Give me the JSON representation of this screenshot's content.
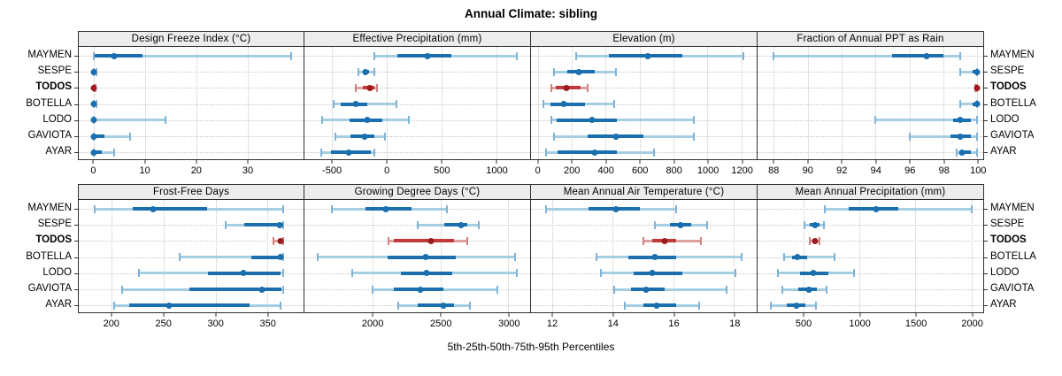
{
  "title": "Annual Climate: sibling",
  "caption": "5th-25th-50th-75th-95th Percentiles",
  "colors": {
    "blue_dot": "#1b6fae",
    "blue_bar": "#1b6fae",
    "blue_band": "#a6cee3",
    "blue_cap": "#7fb3d8",
    "red_dot": "#9c1b1e",
    "red_bar": "#c0393b",
    "red_band": "#dfa0a0",
    "red_cap": "#d08080",
    "header_bg": "#ececec",
    "grid": "#c6c6c6",
    "frame": "#2f2f2f"
  },
  "chart_data": {
    "type": "scatter",
    "subtype": "percentile-dotplot-with-error-bars",
    "grid": "dotted",
    "legend": "none",
    "percentiles": [
      "5th",
      "25th",
      "50th",
      "75th",
      "95th"
    ],
    "rows": [
      "MAYMEN",
      "SESPE",
      "TODOS",
      "BOTELLA",
      "LODO",
      "GAVIOTA",
      "AYAR"
    ],
    "highlighted_row": "TODOS",
    "panels": [
      {
        "band": 0,
        "title": "Design Freeze Index (°C)",
        "xdomain": [
          -3,
          41
        ],
        "ticks": [
          0,
          10,
          20,
          30
        ],
        "tick_labels": [
          "0",
          "10",
          "20",
          "30"
        ],
        "values": {
          "MAYMEN": [
            0,
            0.2,
            4,
            9.5,
            38.5
          ],
          "SESPE": [
            0,
            0,
            0,
            0,
            0.5
          ],
          "TODOS": [
            0,
            0,
            0,
            0,
            0.3
          ],
          "BOTELLA": [
            0,
            0,
            0,
            0,
            0.5
          ],
          "LODO": [
            0,
            0,
            0,
            0.5,
            14
          ],
          "GAVIOTA": [
            0,
            0,
            0,
            2,
            7
          ],
          "AYAR": [
            0,
            0,
            0,
            1.5,
            4
          ]
        }
      },
      {
        "band": 0,
        "title": "Effective Precipitation (mm)",
        "xdomain": [
          -750,
          1310
        ],
        "ticks": [
          -500,
          0,
          500,
          1000
        ],
        "tick_labels": [
          "-500",
          "0",
          "500",
          "1000"
        ],
        "values": {
          "MAYMEN": [
            -110,
            95,
            375,
            595,
            1185
          ],
          "SESPE": [
            -255,
            -220,
            -190,
            -160,
            -110
          ],
          "TODOS": [
            -280,
            -215,
            -150,
            -110,
            -90
          ],
          "BOTELLA": [
            -480,
            -420,
            -280,
            -180,
            90
          ],
          "LODO": [
            -590,
            -340,
            -180,
            -40,
            205
          ],
          "GAVIOTA": [
            -465,
            -330,
            -200,
            -110,
            -15
          ],
          "AYAR": [
            -600,
            -505,
            -350,
            -145,
            -115
          ]
        }
      },
      {
        "band": 0,
        "title": "Elevation (m)",
        "xdomain": [
          -40,
          1290
        ],
        "ticks": [
          0,
          200,
          400,
          600,
          800,
          1000,
          1200
        ],
        "tick_labels": [
          "0",
          "200",
          "400",
          "600",
          "800",
          "1000",
          "1200"
        ],
        "values": {
          "MAYMEN": [
            225,
            420,
            650,
            850,
            1210
          ],
          "SESPE": [
            95,
            175,
            240,
            335,
            460
          ],
          "TODOS": [
            80,
            105,
            170,
            250,
            295
          ],
          "BOTELLA": [
            35,
            75,
            155,
            280,
            450
          ],
          "LODO": [
            80,
            110,
            320,
            465,
            920
          ],
          "GAVIOTA": [
            95,
            295,
            460,
            620,
            920
          ],
          "AYAR": [
            50,
            115,
            335,
            465,
            685
          ]
        }
      },
      {
        "band": 0,
        "title": "Fraction of Annual PPT as Rain",
        "xdomain": [
          87.05,
          100.35
        ],
        "ticks": [
          88,
          90,
          92,
          94,
          96,
          98,
          100
        ],
        "tick_labels": [
          "88",
          "90",
          "92",
          "94",
          "96",
          "98",
          "100"
        ],
        "values": {
          "MAYMEN": [
            88,
            95,
            97,
            98,
            99
          ],
          "SESPE": [
            99,
            99.7,
            100,
            100,
            100
          ],
          "TODOS": [
            99.9,
            100,
            100,
            100,
            100
          ],
          "BOTELLA": [
            99,
            99.7,
            100,
            100,
            100
          ],
          "LODO": [
            94,
            98.6,
            99,
            99.6,
            100
          ],
          "GAVIOTA": [
            96,
            98.4,
            99,
            99.6,
            100
          ],
          "AYAR": [
            98.8,
            99,
            99.1,
            99.6,
            100
          ]
        }
      },
      {
        "band": 1,
        "title": "Frost-Free Days",
        "xdomain": [
          168,
          385
        ],
        "ticks": [
          200,
          250,
          300,
          350
        ],
        "tick_labels": [
          "200",
          "250",
          "300",
          "350"
        ],
        "values": {
          "MAYMEN": [
            183,
            220,
            240,
            292,
            365
          ],
          "SESPE": [
            310,
            328,
            362,
            365,
            365
          ],
          "TODOS": [
            356,
            360,
            363,
            365,
            365
          ],
          "BOTELLA": [
            265,
            335,
            363,
            365,
            365
          ],
          "LODO": [
            226,
            293,
            327,
            363,
            365
          ],
          "GAVIOTA": [
            210,
            275,
            345,
            364,
            365
          ],
          "AYAR": [
            202,
            217,
            255,
            333,
            363
          ]
        }
      },
      {
        "band": 1,
        "title": "Growing Degree Days (°C)",
        "xdomain": [
          1500,
          3160
        ],
        "ticks": [
          2000,
          2500,
          3000
        ],
        "tick_labels": [
          "2000",
          "2500",
          "3000"
        ],
        "values": {
          "MAYMEN": [
            1700,
            1950,
            2100,
            2290,
            2550
          ],
          "SESPE": [
            2330,
            2530,
            2650,
            2700,
            2780
          ],
          "TODOS": [
            2120,
            2160,
            2430,
            2600,
            2700
          ],
          "BOTELLA": [
            1600,
            2110,
            2390,
            2610,
            3050
          ],
          "LODO": [
            1850,
            2210,
            2400,
            2590,
            3060
          ],
          "GAVIOTA": [
            2000,
            2160,
            2350,
            2520,
            2920
          ],
          "AYAR": [
            2190,
            2330,
            2520,
            2600,
            2720
          ]
        }
      },
      {
        "band": 1,
        "title": "Mean Annual Air Temperature (°C)",
        "xdomain": [
          11.3,
          18.75
        ],
        "ticks": [
          12,
          14,
          16,
          18
        ],
        "tick_labels": [
          "12",
          "14",
          "16",
          "18"
        ],
        "values": {
          "MAYMEN": [
            11.8,
            13.2,
            14.1,
            14.9,
            16.1
          ],
          "SESPE": [
            15.4,
            15.9,
            16.25,
            16.6,
            17.1
          ],
          "TODOS": [
            15.0,
            15.3,
            15.7,
            16.1,
            16.9
          ],
          "BOTELLA": [
            13.45,
            14.5,
            15.4,
            16.1,
            18.25
          ],
          "LODO": [
            13.6,
            14.7,
            15.3,
            16.3,
            18.05
          ],
          "GAVIOTA": [
            14.05,
            14.6,
            15.1,
            15.7,
            17.75
          ],
          "AYAR": [
            14.4,
            15.0,
            15.45,
            16.1,
            16.85
          ]
        }
      },
      {
        "band": 1,
        "title": "Mean Annual Precipitation (mm)",
        "xdomain": [
          90,
          2105
        ],
        "ticks": [
          500,
          1000,
          1500,
          2000
        ],
        "tick_labels": [
          "500",
          "1000",
          "1500",
          "2000"
        ],
        "values": {
          "MAYMEN": [
            690,
            900,
            1150,
            1350,
            2000
          ],
          "SESPE": [
            510,
            560,
            600,
            640,
            680
          ],
          "TODOS": [
            555,
            580,
            600,
            620,
            645
          ],
          "BOTELLA": [
            330,
            400,
            445,
            530,
            780
          ],
          "LODO": [
            270,
            470,
            590,
            720,
            950
          ],
          "GAVIOTA": [
            310,
            450,
            545,
            620,
            710
          ],
          "AYAR": [
            210,
            350,
            440,
            520,
            615
          ]
        }
      }
    ]
  }
}
